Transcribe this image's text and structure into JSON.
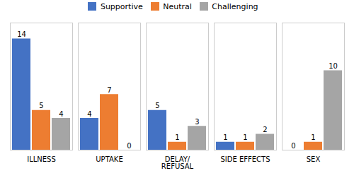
{
  "chart_data": {
    "type": "bar",
    "categories": [
      "ILLNESS",
      "UPTAKE",
      "DELAY/\nREFUSAL",
      "SIDE EFFECTS",
      "SEX"
    ],
    "series": [
      {
        "name": "Supportive",
        "color": "#4472C4",
        "values": [
          14,
          4,
          5,
          1,
          0
        ]
      },
      {
        "name": "Neutral",
        "color": "#ED7D31",
        "values": [
          5,
          7,
          1,
          1,
          1
        ]
      },
      {
        "name": "Challenging",
        "color": "#A5A5A5",
        "values": [
          4,
          0,
          3,
          2,
          10
        ]
      }
    ],
    "ylim": [
      0,
      16
    ],
    "yticks": [],
    "grid": false,
    "legend": "upper center",
    "data_labels": true,
    "tick_labels": "x"
  }
}
